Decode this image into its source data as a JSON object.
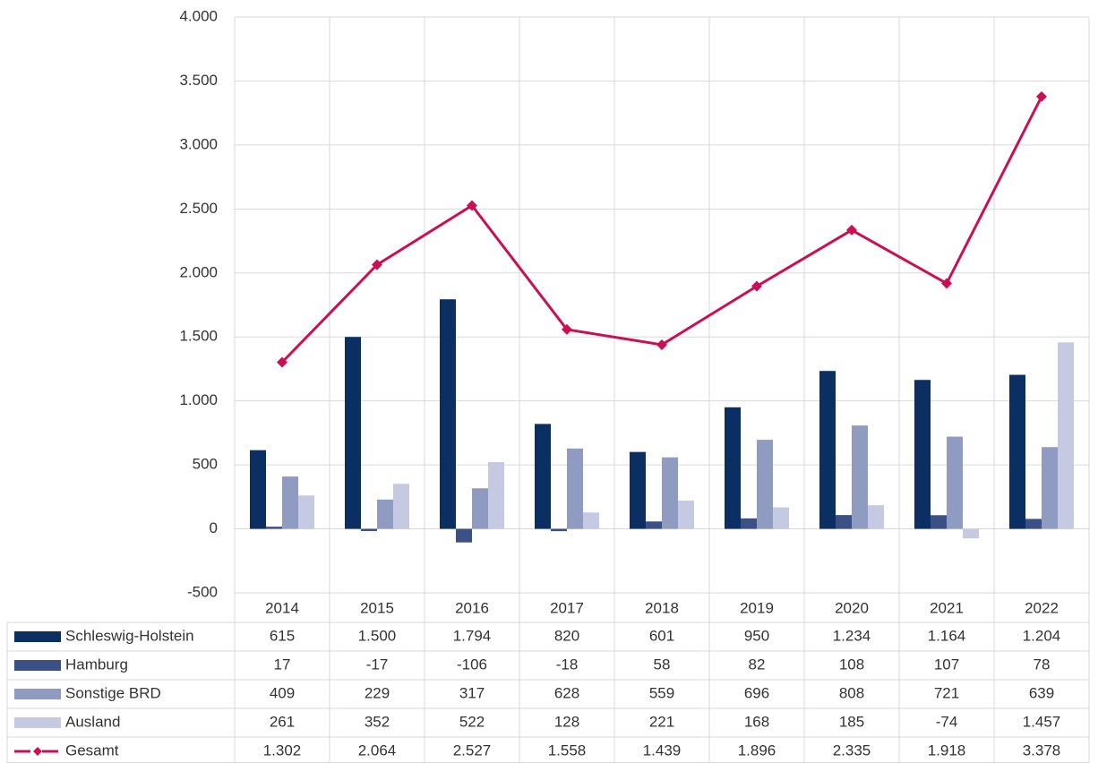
{
  "chart_data": {
    "type": "bar",
    "categories": [
      "2014",
      "2015",
      "2016",
      "2017",
      "2018",
      "2019",
      "2020",
      "2021",
      "2022"
    ],
    "series": [
      {
        "name": "Schleswig-Holstein",
        "color": "#0b2f63",
        "type": "bar",
        "values": [
          615,
          1500,
          1794,
          820,
          601,
          950,
          1234,
          1164,
          1204
        ],
        "value_labels": [
          "615",
          "1.500",
          "1.794",
          "820",
          "601",
          "950",
          "1.234",
          "1.164",
          "1.204"
        ]
      },
      {
        "name": "Hamburg",
        "color": "#3c5088",
        "type": "bar",
        "values": [
          17,
          -17,
          -106,
          -18,
          58,
          82,
          108,
          107,
          78
        ],
        "value_labels": [
          "17",
          "-17",
          "-106",
          "-18",
          "58",
          "82",
          "108",
          "107",
          "78"
        ]
      },
      {
        "name": "Sonstige BRD",
        "color": "#8f9bc0",
        "type": "bar",
        "values": [
          409,
          229,
          317,
          628,
          559,
          696,
          808,
          721,
          639
        ],
        "value_labels": [
          "409",
          "229",
          "317",
          "628",
          "559",
          "696",
          "808",
          "721",
          "639"
        ]
      },
      {
        "name": "Ausland",
        "color": "#c5c9e1",
        "type": "bar",
        "values": [
          261,
          352,
          522,
          128,
          221,
          168,
          185,
          -74,
          1457
        ],
        "value_labels": [
          "261",
          "352",
          "522",
          "128",
          "221",
          "168",
          "185",
          "-74",
          "1.457"
        ]
      },
      {
        "name": "Gesamt",
        "color": "#cc0e54",
        "type": "line",
        "values": [
          1302,
          2064,
          2527,
          1558,
          1439,
          1896,
          2335,
          1918,
          3378
        ],
        "value_labels": [
          "1.302",
          "2.064",
          "2.527",
          "1.558",
          "1.439",
          "1.896",
          "2.335",
          "1.918",
          "3.378"
        ]
      }
    ],
    "ylim": [
      -500,
      4000
    ],
    "yticks": [
      -500,
      0,
      500,
      {
        "value": 1000,
        "label": "1.000"
      },
      {
        "value": 1500,
        "label": "1.500"
      },
      {
        "value": 2000,
        "label": "2.000"
      },
      {
        "value": 2500,
        "label": "2.500"
      },
      {
        "value": 3000,
        "label": "3.000"
      },
      {
        "value": 3500,
        "label": "3.500"
      },
      {
        "value": 4000,
        "label": "4.000"
      }
    ],
    "grid": true
  }
}
